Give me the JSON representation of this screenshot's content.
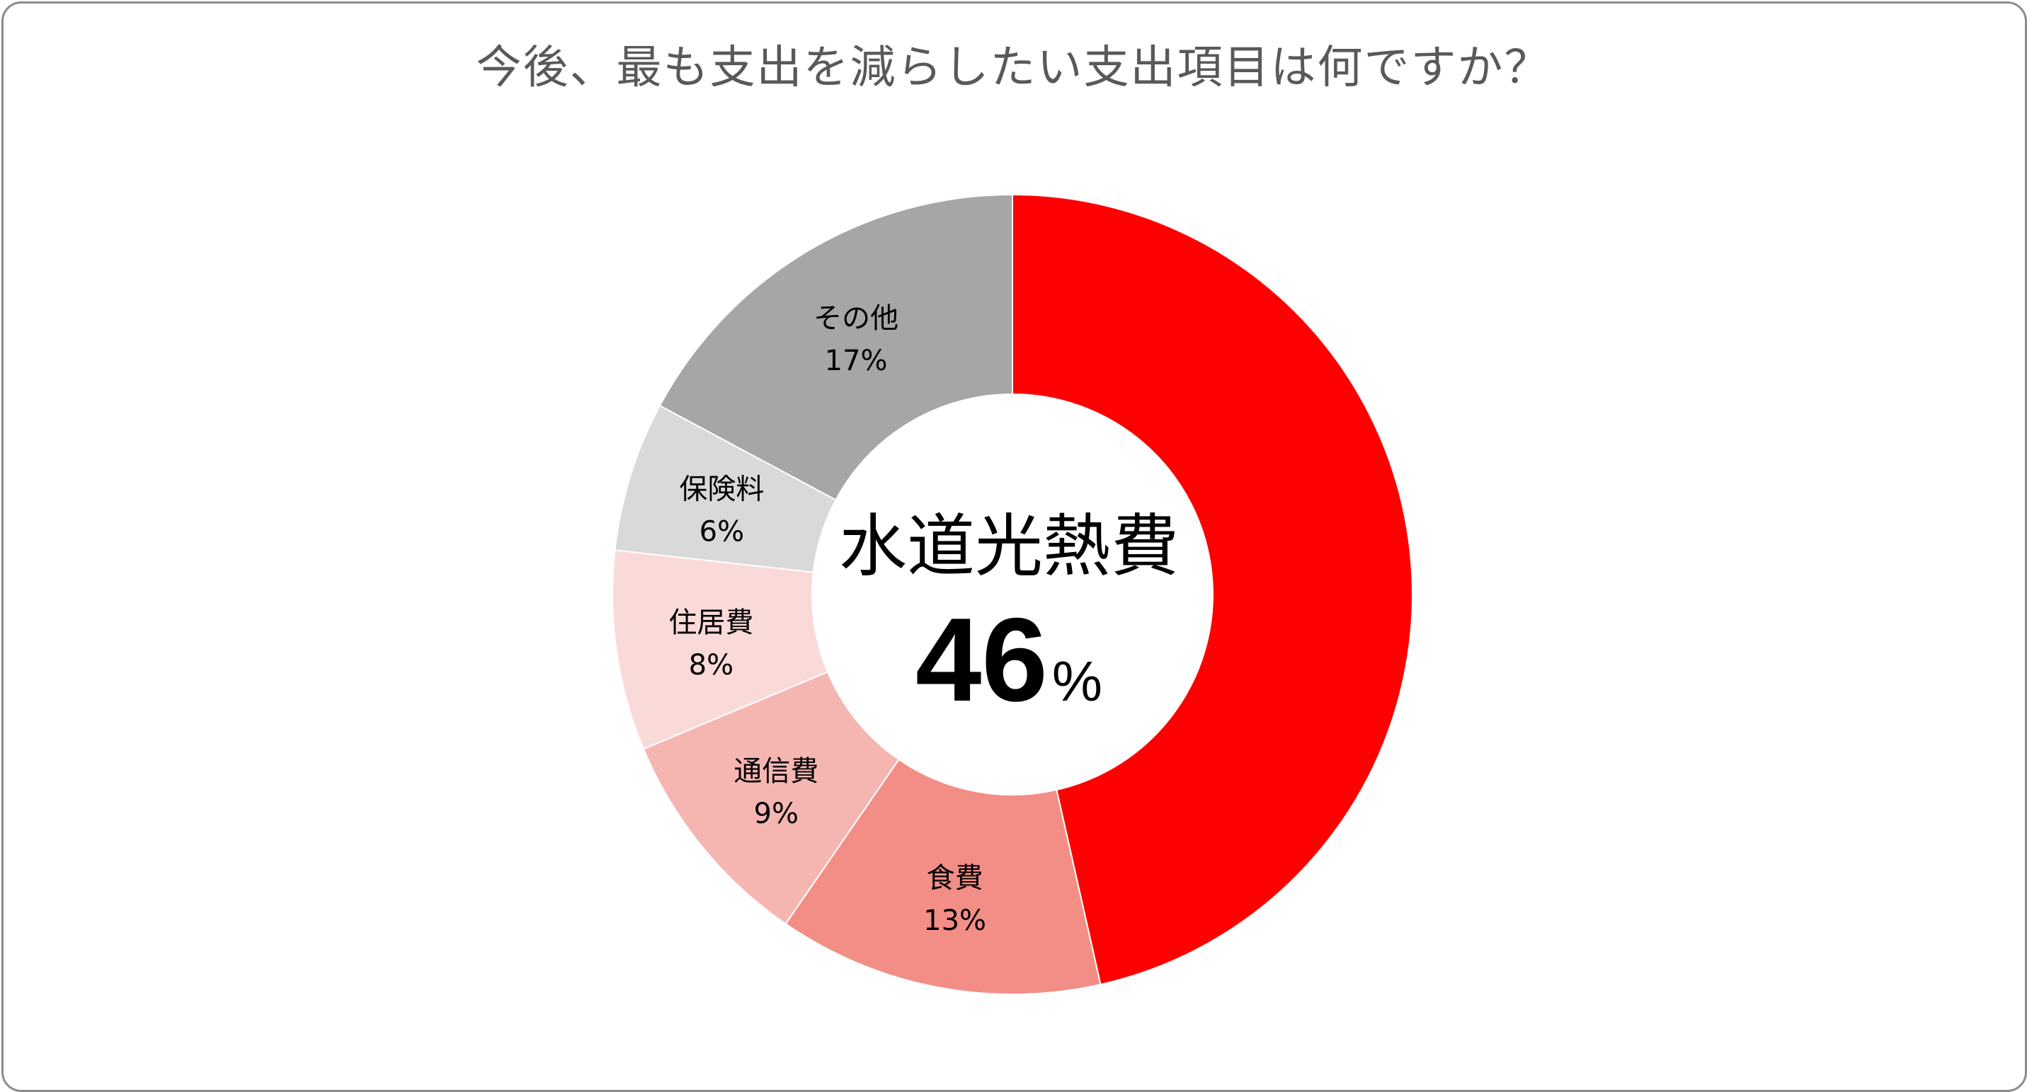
{
  "chart_data": {
    "type": "pie",
    "title": "今後、最も支出を減らしたい支出項目は何ですか？",
    "unit": "%",
    "slices": [
      {
        "label": "水道光熱費",
        "value": 46,
        "display": "46%",
        "color": "#FF0000"
      },
      {
        "label": "食費",
        "value": 13,
        "display": "13%",
        "color": "#F28E86"
      },
      {
        "label": "通信費",
        "value": 9,
        "display": "9%",
        "color": "#F5B6B2"
      },
      {
        "label": "住居費",
        "value": 8,
        "display": "8%",
        "color": "#FADAD8"
      },
      {
        "label": "保険料",
        "value": 6,
        "display": "6%",
        "color": "#D9D9D9"
      },
      {
        "label": "その他",
        "value": 17,
        "display": "17%",
        "color": "#A6A6A6"
      }
    ],
    "center": {
      "label": "水道光熱費",
      "value": "46",
      "unit": "%"
    }
  }
}
